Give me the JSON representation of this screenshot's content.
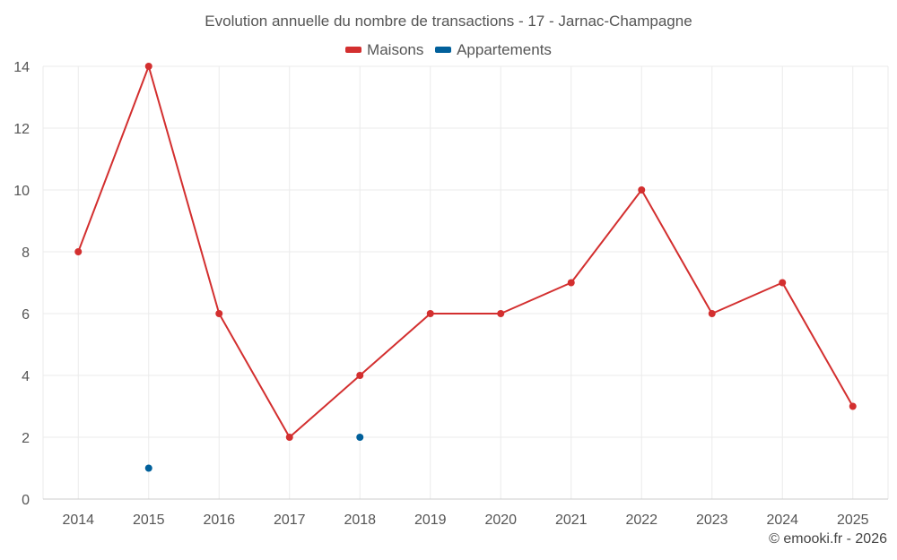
{
  "chart_data": {
    "type": "line",
    "title": "Evolution annuelle du nombre de transactions - 17 - Jarnac-Champagne",
    "categories": [
      "2014",
      "2015",
      "2016",
      "2017",
      "2018",
      "2019",
      "2020",
      "2021",
      "2022",
      "2023",
      "2024",
      "2025"
    ],
    "series": [
      {
        "name": "Maisons",
        "color": "#d32f2f",
        "values": [
          8,
          14,
          6,
          2,
          4,
          6,
          6,
          7,
          10,
          6,
          7,
          3
        ]
      },
      {
        "name": "Appartements",
        "color": "#01609b",
        "values": [
          null,
          1,
          null,
          null,
          2,
          null,
          null,
          null,
          null,
          null,
          null,
          null
        ]
      }
    ],
    "ylim": [
      0,
      14
    ],
    "yticks": [
      0,
      2,
      4,
      6,
      8,
      10,
      12,
      14
    ],
    "grid": true,
    "legend": "top-center",
    "xlabel": "",
    "ylabel": ""
  },
  "credit": "© emooki.fr - 2026"
}
